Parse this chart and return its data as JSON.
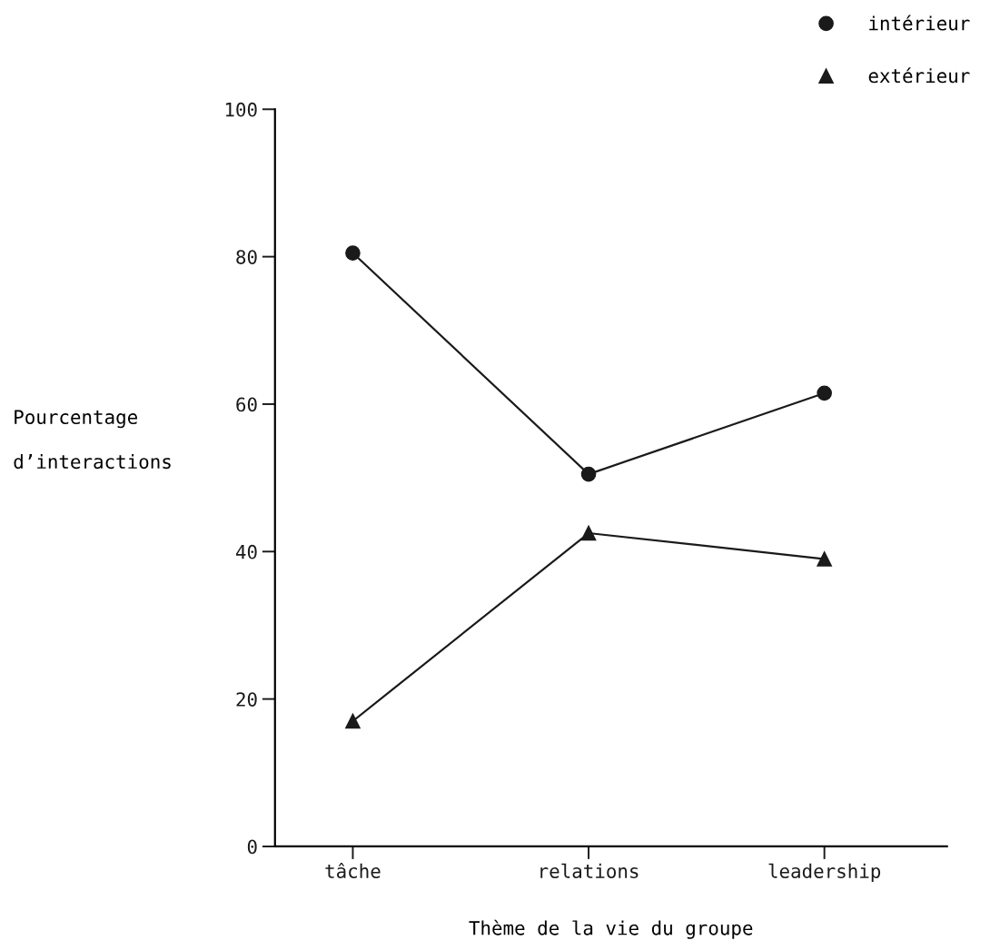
{
  "chart_data": {
    "type": "line",
    "categories": [
      "tâche",
      "relations",
      "leadership"
    ],
    "series": [
      {
        "name": "intérieur",
        "color": "#1a1a1a",
        "marker": "circle",
        "values": [
          80.5,
          50.5,
          61.5
        ]
      },
      {
        "name": "extérieur",
        "color": "#1a1a1a",
        "marker": "triangle",
        "values": [
          17,
          42.5,
          39
        ]
      }
    ],
    "xlabel": "Thème de la vie du groupe",
    "ylabel": "Pourcentage\nd’interactions",
    "ylim": [
      0,
      100
    ],
    "yticks": [
      0,
      20,
      40,
      60,
      80,
      100
    ],
    "grid": false,
    "legend": "top right",
    "line_style": "solid"
  }
}
